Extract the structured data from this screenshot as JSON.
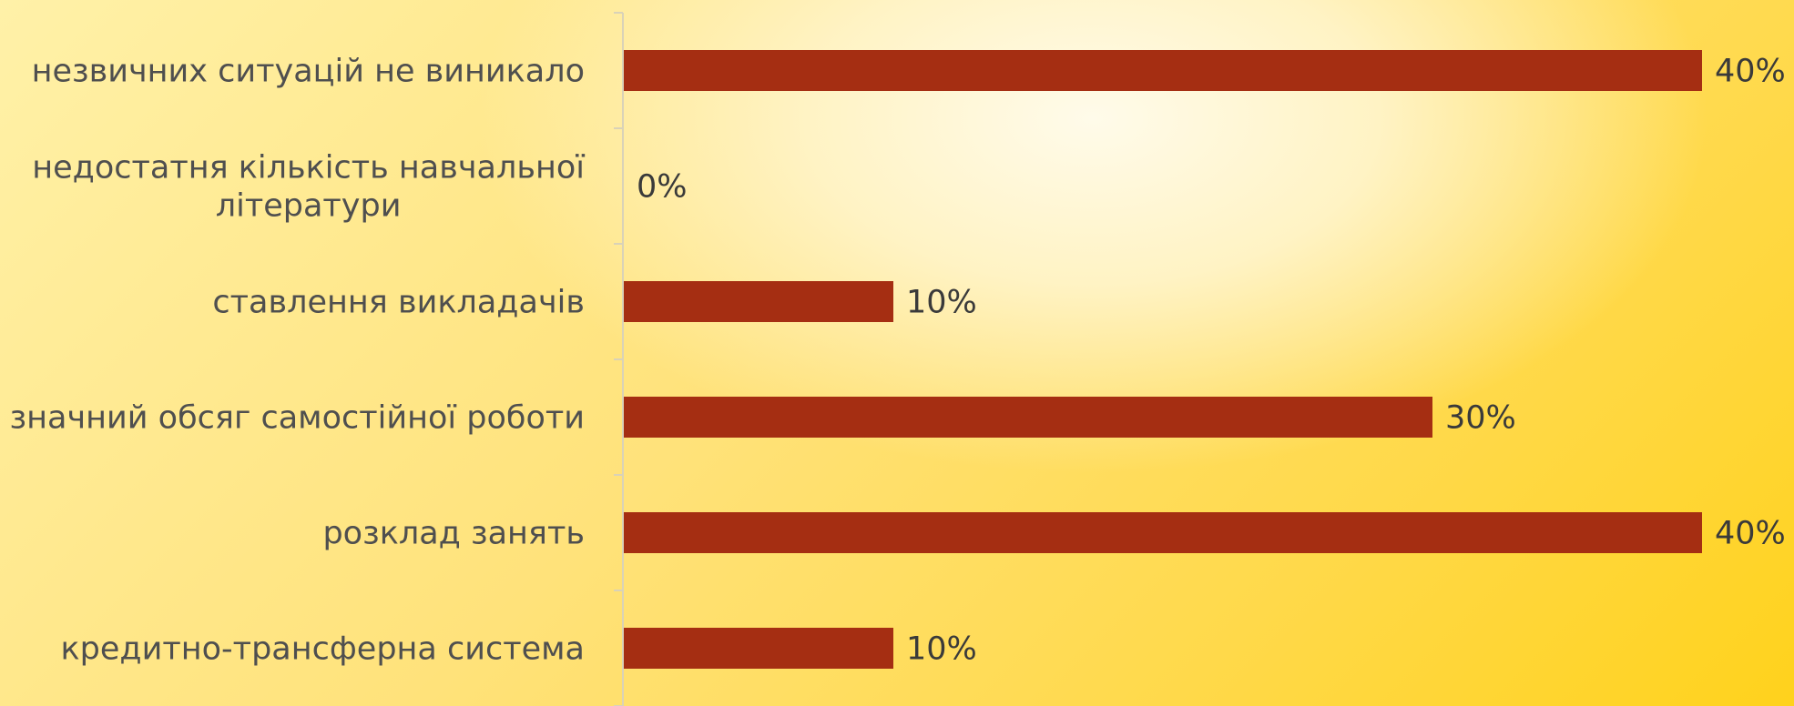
{
  "chart_data": {
    "type": "bar",
    "orientation": "horizontal",
    "categories": [
      "незвичних ситуацій не виникало",
      "недостатня кількість навчальної літератури",
      "ставлення викладачів",
      "значний обсяг самостійної роботи",
      "розклад занять",
      "кредитно-трансферна система"
    ],
    "category_lines": [
      [
        "незвичних ситуацій не виникало"
      ],
      [
        "недостатня кількість навчальної",
        "літератури"
      ],
      [
        "ставлення викладачів"
      ],
      [
        "значний обсяг самостійної роботи"
      ],
      [
        "розклад занять"
      ],
      [
        "кредитно-трансферна система"
      ]
    ],
    "values": [
      40,
      0,
      10,
      30,
      40,
      10
    ],
    "value_labels": [
      "40%",
      "0%",
      "10%",
      "30%",
      "40%",
      "10%"
    ],
    "unit": "%",
    "xlim": [
      0,
      40
    ],
    "bar_color": "#a52e12",
    "axis_color": "#d9d2b8",
    "grid": false,
    "legend": "none"
  }
}
